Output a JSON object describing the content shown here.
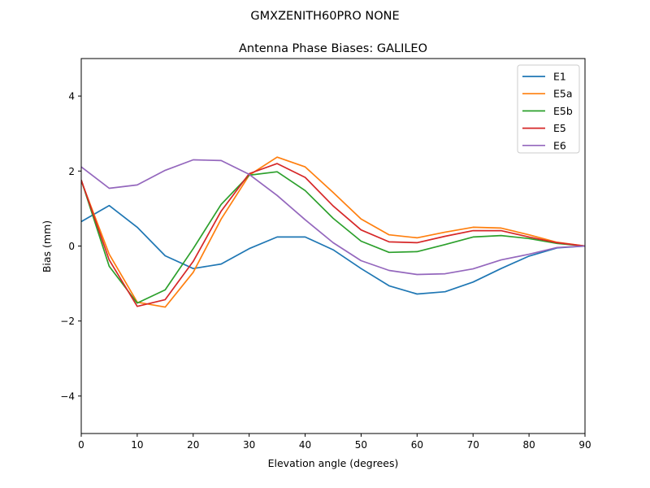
{
  "chart_data": {
    "type": "line",
    "suptitle": "GMXZENITH60PRO  NONE",
    "title": "Antenna Phase Biases: GALILEO",
    "xlabel": "Elevation angle (degrees)",
    "ylabel": "Bias (mm)",
    "xlim": [
      0,
      90
    ],
    "ylim": [
      -5,
      5
    ],
    "xticks": [
      0,
      10,
      20,
      30,
      40,
      50,
      60,
      70,
      80,
      90
    ],
    "yticks": [
      -4,
      -2,
      0,
      2,
      4
    ],
    "ytick_labels": [
      "−4",
      "−2",
      "0",
      "2",
      "4"
    ],
    "grid": false,
    "legend_position": "top-right",
    "x": [
      0,
      5,
      10,
      15,
      20,
      25,
      30,
      35,
      40,
      45,
      50,
      55,
      60,
      65,
      70,
      75,
      80,
      85,
      90
    ],
    "series": [
      {
        "name": "E1",
        "color": "#1f77b4",
        "values": [
          0.65,
          1.08,
          0.5,
          -0.26,
          -0.6,
          -0.48,
          -0.07,
          0.24,
          0.24,
          -0.1,
          -0.6,
          -1.06,
          -1.28,
          -1.22,
          -0.96,
          -0.6,
          -0.27,
          -0.05,
          0.0
        ]
      },
      {
        "name": "E5a",
        "color": "#ff7f0e",
        "values": [
          1.74,
          -0.22,
          -1.5,
          -1.63,
          -0.7,
          0.72,
          1.89,
          2.37,
          2.11,
          1.43,
          0.72,
          0.3,
          0.22,
          0.37,
          0.5,
          0.48,
          0.3,
          0.1,
          0.0
        ]
      },
      {
        "name": "E5b",
        "color": "#2ca02c",
        "values": [
          1.76,
          -0.54,
          -1.52,
          -1.17,
          -0.07,
          1.11,
          1.89,
          1.98,
          1.48,
          0.74,
          0.13,
          -0.17,
          -0.15,
          0.04,
          0.24,
          0.28,
          0.2,
          0.07,
          0.0
        ]
      },
      {
        "name": "E5",
        "color": "#d62728",
        "values": [
          1.76,
          -0.37,
          -1.61,
          -1.43,
          -0.41,
          0.93,
          1.93,
          2.2,
          1.83,
          1.07,
          0.43,
          0.11,
          0.09,
          0.26,
          0.41,
          0.41,
          0.24,
          0.09,
          0.0
        ]
      },
      {
        "name": "E6",
        "color": "#9467bd",
        "values": [
          2.11,
          1.54,
          1.63,
          2.02,
          2.3,
          2.28,
          1.91,
          1.35,
          0.7,
          0.09,
          -0.39,
          -0.65,
          -0.76,
          -0.74,
          -0.61,
          -0.37,
          -0.22,
          -0.04,
          0.0
        ]
      }
    ]
  }
}
